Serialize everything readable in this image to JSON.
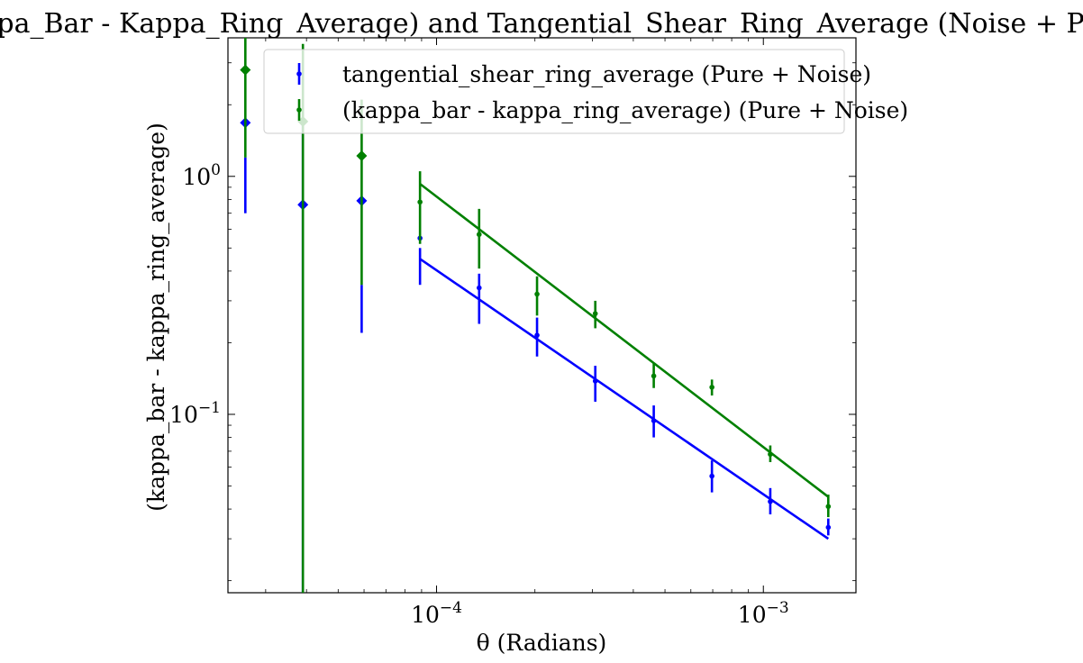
{
  "chart_data": {
    "type": "scatter",
    "title": "(Kappa_Bar - Kappa_Ring_Average) and Tangential_Shear_Ring_Average (Noise + Pure)",
    "xlabel": "θ (Radians)",
    "ylabel": "(kappa_bar - kappa_ring_average)",
    "xscale": "log",
    "yscale": "log",
    "xlim": [
      2.3e-05,
      0.00192
    ],
    "ylim": [
      0.0178,
      3.82
    ],
    "xticks": [
      {
        "value": 0.0001,
        "base": "10",
        "exp": "−4"
      },
      {
        "value": 0.001,
        "base": "10",
        "exp": "−3"
      }
    ],
    "yticks": [
      {
        "value": 0.1,
        "base": "10",
        "exp": "−1"
      },
      {
        "value": 1.0,
        "base": "10",
        "exp": "0"
      }
    ],
    "legend_position": "top-right",
    "series": [
      {
        "name": "tangential_shear_ring_average (Pure + Noise)",
        "color": "#0000ff",
        "points": [
          {
            "x": 8.9e-05,
            "y": 0.55,
            "ylo": 0.35,
            "yhi": 0.5
          },
          {
            "x": 0.000135,
            "y": 0.34,
            "ylo": 0.24,
            "yhi": 0.39
          },
          {
            "x": 0.000203,
            "y": 0.215,
            "ylo": 0.175,
            "yhi": 0.255
          },
          {
            "x": 0.000306,
            "y": 0.138,
            "ylo": 0.113,
            "yhi": 0.16
          },
          {
            "x": 0.000462,
            "y": 0.094,
            "ylo": 0.08,
            "yhi": 0.109
          },
          {
            "x": 0.000696,
            "y": 0.055,
            "ylo": 0.047,
            "yhi": 0.064
          },
          {
            "x": 0.00105,
            "y": 0.043,
            "ylo": 0.038,
            "yhi": 0.049
          },
          {
            "x": 0.00158,
            "y": 0.0335,
            "ylo": 0.031,
            "yhi": 0.0365
          }
        ],
        "large_points": [
          {
            "x": 2.6e-05,
            "y": 1.68,
            "ylo": 0.7,
            "yhi": 1.2
          },
          {
            "x": 3.9e-05,
            "y": 0.76,
            "ylo": 0.0178,
            "yhi": 1.7
          },
          {
            "x": 5.9e-05,
            "y": 0.79,
            "ylo": 0.22,
            "yhi": 0.35
          }
        ],
        "fit": [
          {
            "x": 8.9e-05,
            "y": 0.45
          },
          {
            "x": 0.00158,
            "y": 0.03
          }
        ]
      },
      {
        "name": "(kappa_bar - kappa_ring_average) (Pure + Noise)",
        "color": "#008000",
        "points": [
          {
            "x": 8.9e-05,
            "y": 0.78,
            "ylo": 0.52,
            "yhi": 1.05
          },
          {
            "x": 0.000135,
            "y": 0.57,
            "ylo": 0.41,
            "yhi": 0.73
          },
          {
            "x": 0.000203,
            "y": 0.32,
            "ylo": 0.26,
            "yhi": 0.38
          },
          {
            "x": 0.000306,
            "y": 0.265,
            "ylo": 0.23,
            "yhi": 0.3
          },
          {
            "x": 0.000462,
            "y": 0.145,
            "ylo": 0.129,
            "yhi": 0.165
          },
          {
            "x": 0.000696,
            "y": 0.13,
            "ylo": 0.12,
            "yhi": 0.14
          },
          {
            "x": 0.00105,
            "y": 0.068,
            "ylo": 0.063,
            "yhi": 0.074
          },
          {
            "x": 0.00158,
            "y": 0.041,
            "ylo": 0.037,
            "yhi": 0.046
          }
        ],
        "large_points": [
          {
            "x": 2.6e-05,
            "y": 2.8,
            "ylo": 1.2,
            "yhi": 3.82
          },
          {
            "x": 3.9e-05,
            "y": 1.7,
            "ylo": 0.0178,
            "yhi": 3.6
          },
          {
            "x": 5.9e-05,
            "y": 1.22,
            "ylo": 0.35,
            "yhi": 2.1
          }
        ],
        "fit": [
          {
            "x": 8.9e-05,
            "y": 0.93
          },
          {
            "x": 0.00158,
            "y": 0.045
          }
        ]
      }
    ]
  }
}
